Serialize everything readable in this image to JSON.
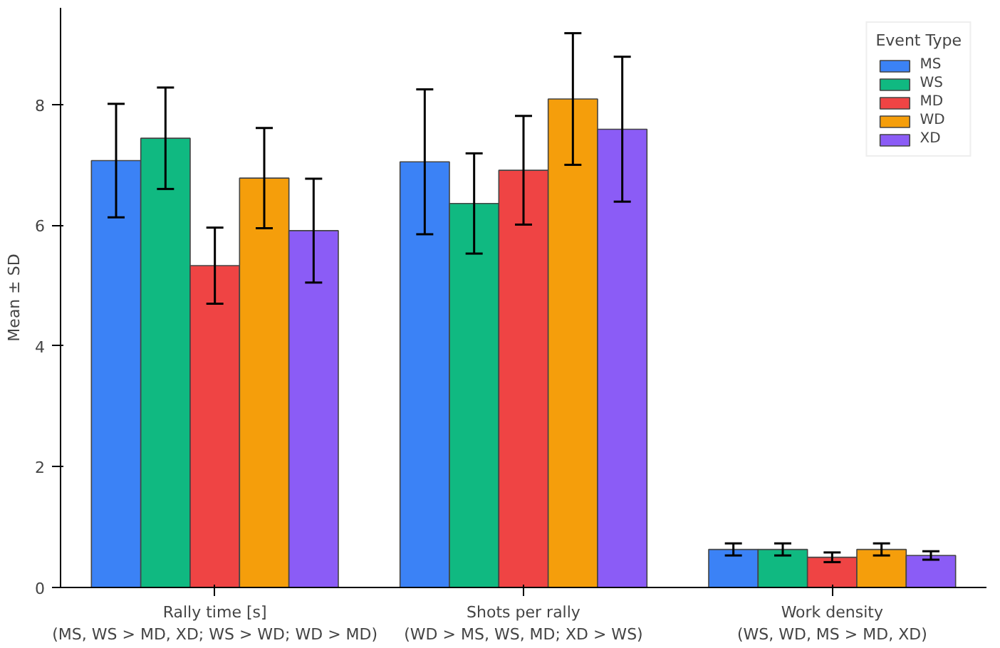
{
  "chart_data": {
    "type": "bar",
    "ylabel": "Mean ± SD",
    "legend_title": "Event Type",
    "legend": "top right",
    "grid": false,
    "categories": [
      "Rally time [s]\n(MS, WS > MD, XD; WS > WD; WD > MD)",
      "Shots per rally\n(WD > MS, WS, MD; XD > WS)",
      "Work density\n(WS, WD, MS > MD, XD)"
    ],
    "ylim": [
      0,
      9.6
    ],
    "yticks": [
      0,
      2,
      4,
      6,
      8
    ],
    "series": [
      {
        "name": "MS",
        "color": "#3b82f6",
        "values": [
          7.07,
          7.05,
          0.63
        ],
        "errors": [
          0.94,
          1.2,
          0.1
        ]
      },
      {
        "name": "WS",
        "color": "#10b981",
        "values": [
          7.44,
          6.36,
          0.63
        ],
        "errors": [
          0.84,
          0.83,
          0.1
        ]
      },
      {
        "name": "MD",
        "color": "#ef4444",
        "values": [
          5.33,
          6.91,
          0.5
        ],
        "errors": [
          0.63,
          0.9,
          0.08
        ]
      },
      {
        "name": "WD",
        "color": "#f59e0b",
        "values": [
          6.78,
          8.09,
          0.63
        ],
        "errors": [
          0.83,
          1.09,
          0.1
        ]
      },
      {
        "name": "XD",
        "color": "#8b5cf6",
        "values": [
          5.91,
          7.59,
          0.53
        ],
        "errors": [
          0.86,
          1.2,
          0.07
        ]
      }
    ]
  }
}
